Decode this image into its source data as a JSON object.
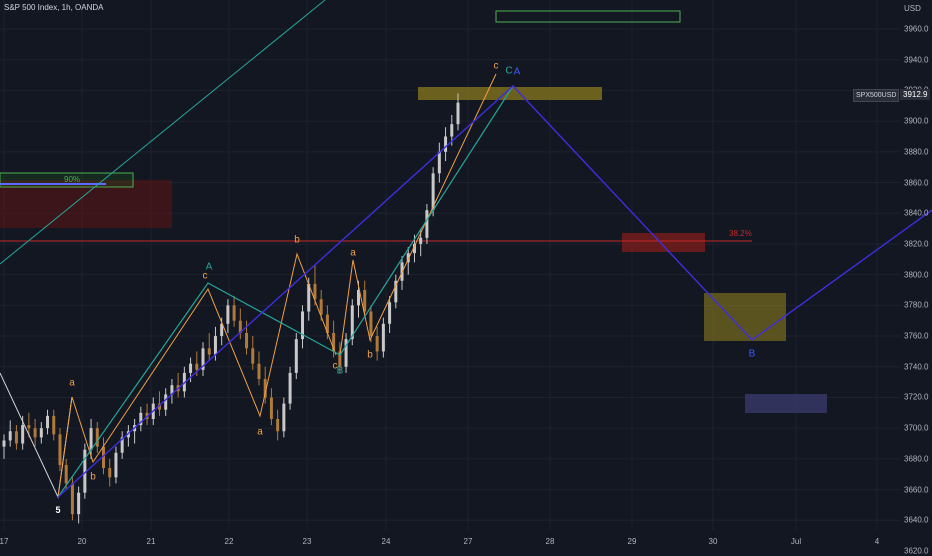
{
  "header": {
    "title": "S&P 500 Index, 1h, OANDA",
    "currency": "USD"
  },
  "price_axis": {
    "ticks": [
      "3960.0",
      "3940.0",
      "3920.0",
      "3900.0",
      "3880.0",
      "3860.0",
      "3840.0",
      "3820.0",
      "3800.0",
      "3780.0",
      "3760.0",
      "3740.0",
      "3720.0",
      "3700.0",
      "3680.0",
      "3660.0",
      "3640.0",
      "3620.0"
    ],
    "symbol": "SPX500USD",
    "last_price": "3912.9"
  },
  "time_axis": {
    "ticks": [
      "17",
      "20",
      "21",
      "22",
      "23",
      "24",
      "27",
      "28",
      "29",
      "30",
      "Jul",
      "4"
    ]
  },
  "annotations": {
    "fib_label": "38.2%",
    "percent_label": "90%"
  },
  "wave_labels": {
    "five": "5",
    "a1": "a",
    "b1": "b",
    "c1": "c",
    "A1": "A",
    "a2": "a",
    "b2": "b",
    "cB_c": "c",
    "cB_B": "B",
    "a3": "a",
    "b3": "b",
    "c_top": "c",
    "C_top": "C",
    "A_top": "A",
    "B_proj": "B"
  },
  "colors": {
    "background": "#131722",
    "up": "#c9c9c9",
    "down": "#b07a3a",
    "orange": "#f0a044",
    "teal": "#26a69a",
    "blue": "#3d2ee0",
    "fib_red": "#c62828",
    "yellow_box": "#c8a82c",
    "green_box": "#4caf50"
  },
  "chart_data": {
    "type": "candlestick",
    "title": "S&P 500 Index, 1h, OANDA",
    "symbol": "SPX500USD",
    "currency": "USD",
    "last_price": 3912.9,
    "ylim": [
      3615,
      3972
    ],
    "x_ticks": [
      "17",
      "20",
      "21",
      "22",
      "23",
      "24",
      "27",
      "28",
      "29",
      "30",
      "Jul",
      "4"
    ],
    "fib_level": {
      "label": "38.2%",
      "price": 3813
    },
    "waves": [
      {
        "label": "5",
        "price": 3638
      },
      {
        "label": "a",
        "price": 3705
      },
      {
        "label": "b",
        "price": 3664
      },
      {
        "label": "c",
        "price": 3782
      },
      {
        "label": "A",
        "price": 3784
      },
      {
        "label": "a",
        "price": 3694
      },
      {
        "label": "b",
        "price": 3805
      },
      {
        "label": "c",
        "price": 3736
      },
      {
        "label": "B",
        "price": 3735
      },
      {
        "label": "a",
        "price": 3795
      },
      {
        "label": "b",
        "price": 3745
      },
      {
        "label": "c",
        "price": 3918
      },
      {
        "label": "C",
        "price": 3918
      },
      {
        "label": "A",
        "price": 3918
      },
      {
        "label": "B",
        "price": 3746
      }
    ],
    "candles": [
      [
        3688,
        3696,
        3680,
        3692
      ],
      [
        3692,
        3705,
        3688,
        3698
      ],
      [
        3698,
        3702,
        3686,
        3690
      ],
      [
        3690,
        3708,
        3686,
        3702
      ],
      [
        3702,
        3710,
        3694,
        3700
      ],
      [
        3700,
        3706,
        3688,
        3694
      ],
      [
        3694,
        3704,
        3690,
        3700
      ],
      [
        3700,
        3712,
        3696,
        3708
      ],
      [
        3708,
        3712,
        3692,
        3696
      ],
      [
        3696,
        3700,
        3672,
        3676
      ],
      [
        3676,
        3680,
        3660,
        3664
      ],
      [
        3664,
        3668,
        3640,
        3644
      ],
      [
        3644,
        3662,
        3638,
        3658
      ],
      [
        3658,
        3690,
        3654,
        3686
      ],
      [
        3686,
        3706,
        3680,
        3700
      ],
      [
        3700,
        3704,
        3684,
        3688
      ],
      [
        3688,
        3694,
        3670,
        3674
      ],
      [
        3674,
        3680,
        3662,
        3668
      ],
      [
        3668,
        3688,
        3664,
        3684
      ],
      [
        3684,
        3698,
        3680,
        3694
      ],
      [
        3694,
        3702,
        3688,
        3698
      ],
      [
        3698,
        3706,
        3690,
        3702
      ],
      [
        3702,
        3714,
        3698,
        3710
      ],
      [
        3710,
        3716,
        3702,
        3706
      ],
      [
        3706,
        3720,
        3702,
        3716
      ],
      [
        3716,
        3724,
        3708,
        3712
      ],
      [
        3712,
        3726,
        3708,
        3722
      ],
      [
        3722,
        3732,
        3716,
        3728
      ],
      [
        3728,
        3736,
        3720,
        3724
      ],
      [
        3724,
        3740,
        3720,
        3736
      ],
      [
        3736,
        3746,
        3730,
        3742
      ],
      [
        3742,
        3750,
        3734,
        3738
      ],
      [
        3738,
        3756,
        3734,
        3752
      ],
      [
        3752,
        3762,
        3744,
        3748
      ],
      [
        3748,
        3766,
        3744,
        3760
      ],
      [
        3760,
        3772,
        3754,
        3768
      ],
      [
        3768,
        3784,
        3762,
        3780
      ],
      [
        3780,
        3786,
        3766,
        3770
      ],
      [
        3770,
        3778,
        3758,
        3762
      ],
      [
        3762,
        3770,
        3748,
        3752
      ],
      [
        3752,
        3760,
        3738,
        3742
      ],
      [
        3742,
        3750,
        3728,
        3732
      ],
      [
        3732,
        3740,
        3716,
        3720
      ],
      [
        3720,
        3726,
        3702,
        3706
      ],
      [
        3706,
        3712,
        3692,
        3698
      ],
      [
        3698,
        3720,
        3694,
        3716
      ],
      [
        3716,
        3740,
        3712,
        3736
      ],
      [
        3736,
        3762,
        3732,
        3758
      ],
      [
        3758,
        3780,
        3752,
        3776
      ],
      [
        3776,
        3798,
        3770,
        3794
      ],
      [
        3794,
        3806,
        3780,
        3784
      ],
      [
        3784,
        3790,
        3770,
        3774
      ],
      [
        3774,
        3780,
        3758,
        3762
      ],
      [
        3762,
        3770,
        3746,
        3750
      ],
      [
        3750,
        3756,
        3736,
        3740
      ],
      [
        3740,
        3762,
        3736,
        3758
      ],
      [
        3758,
        3784,
        3754,
        3780
      ],
      [
        3780,
        3796,
        3772,
        3790
      ],
      [
        3790,
        3796,
        3772,
        3776
      ],
      [
        3776,
        3780,
        3756,
        3760
      ],
      [
        3760,
        3766,
        3744,
        3750
      ],
      [
        3750,
        3772,
        3746,
        3768
      ],
      [
        3768,
        3786,
        3762,
        3782
      ],
      [
        3782,
        3800,
        3778,
        3796
      ],
      [
        3796,
        3812,
        3790,
        3808
      ],
      [
        3808,
        3818,
        3800,
        3814
      ],
      [
        3814,
        3826,
        3808,
        3820
      ],
      [
        3820,
        3830,
        3812,
        3824
      ],
      [
        3824,
        3846,
        3820,
        3842
      ],
      [
        3842,
        3870,
        3838,
        3866
      ],
      [
        3866,
        3886,
        3860,
        3880
      ],
      [
        3880,
        3896,
        3874,
        3890
      ],
      [
        3890,
        3904,
        3884,
        3898
      ],
      [
        3898,
        3918,
        3894,
        3912
      ]
    ]
  }
}
